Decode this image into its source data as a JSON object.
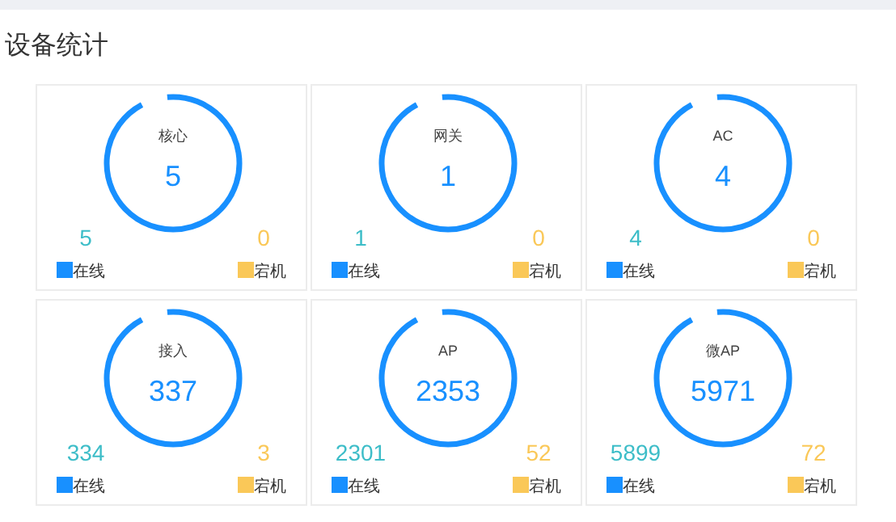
{
  "chart_data": [
    {
      "type": "other",
      "title": "设备统计"
    },
    {
      "type": "other",
      "title": "核心",
      "annotations": [
        "5"
      ],
      "categories": [
        "在线",
        "宕机"
      ],
      "values": [
        5,
        0
      ],
      "data_labels": true,
      "colors": [
        "#1890ff",
        "#fac858"
      ]
    },
    {
      "type": "other",
      "title": "网关",
      "annotations": [
        "1"
      ],
      "categories": [
        "在线",
        "宕机"
      ],
      "values": [
        1,
        0
      ],
      "data_labels": true,
      "colors": [
        "#1890ff",
        "#fac858"
      ]
    },
    {
      "type": "other",
      "title": "AC",
      "annotations": [
        "4"
      ],
      "categories": [
        "在线",
        "宕机"
      ],
      "values": [
        4,
        0
      ],
      "data_labels": true,
      "colors": [
        "#1890ff",
        "#fac858"
      ]
    },
    {
      "type": "other",
      "title": "接入",
      "annotations": [
        "337"
      ],
      "categories": [
        "在线",
        "宕机"
      ],
      "values": [
        334,
        3
      ],
      "data_labels": true,
      "colors": [
        "#1890ff",
        "#fac858"
      ]
    },
    {
      "type": "other",
      "title": "AP",
      "annotations": [
        "2353"
      ],
      "categories": [
        "在线",
        "宕机"
      ],
      "values": [
        2301,
        52
      ],
      "data_labels": true,
      "colors": [
        "#1890ff",
        "#fac858"
      ]
    },
    {
      "type": "other",
      "title": "微AP",
      "annotations": [
        "5971"
      ],
      "categories": [
        "在线",
        "宕机"
      ],
      "values": [
        5899,
        72
      ],
      "data_labels": true,
      "colors": [
        "#1890ff",
        "#fac858"
      ]
    }
  ]
}
